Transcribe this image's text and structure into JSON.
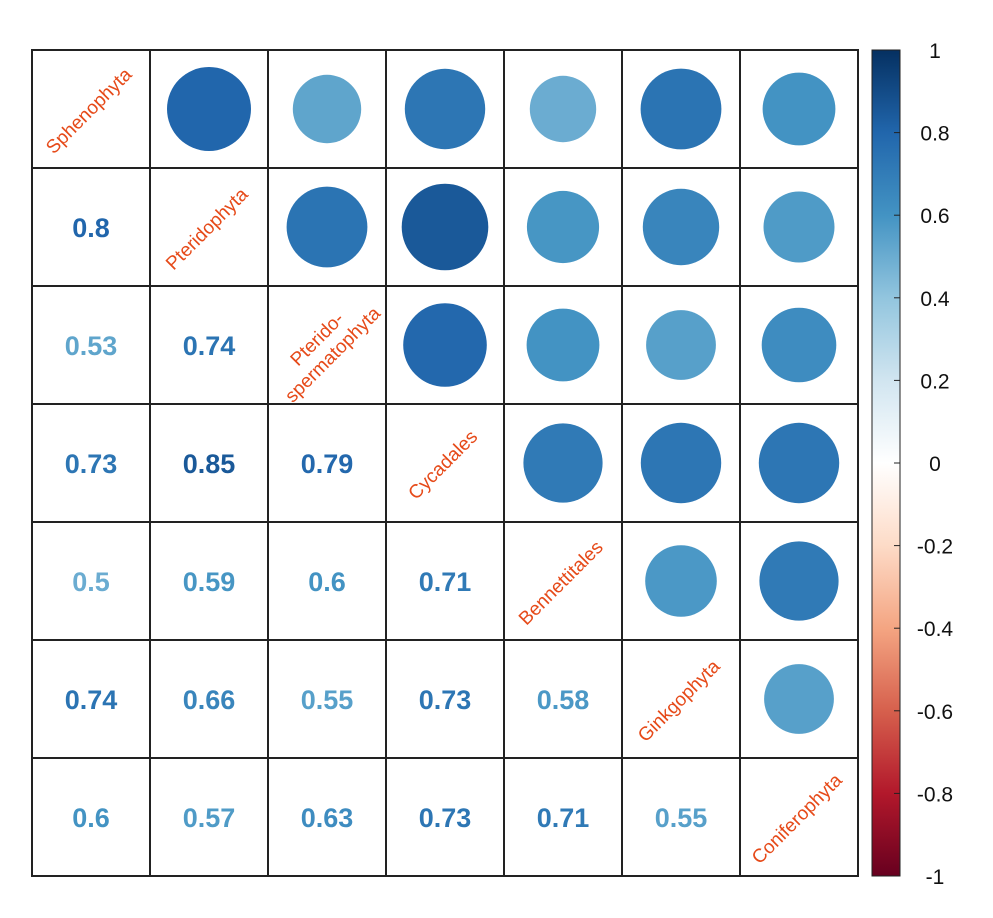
{
  "chart_data": {
    "type": "heatmap",
    "variables": [
      "Sphenophyta",
      "Pteridophyta",
      "Pterido-spermatophyta",
      "Cycadales",
      "Bennettitales",
      "Ginkgophyta",
      "Coniferophyta"
    ],
    "diagonal_labels": [
      [
        "Sphenophyta"
      ],
      [
        "Pteridophyta"
      ],
      [
        "Pterido-",
        "spermatophyta"
      ],
      [
        "Cycadales"
      ],
      [
        "Bennettitales"
      ],
      [
        "Ginkgophyta"
      ],
      [
        "Coniferophyta"
      ]
    ],
    "matrix": [
      [
        1.0,
        0.8,
        0.53,
        0.73,
        0.5,
        0.74,
        0.6
      ],
      [
        0.8,
        1.0,
        0.74,
        0.85,
        0.59,
        0.66,
        0.57
      ],
      [
        0.53,
        0.74,
        1.0,
        0.79,
        0.6,
        0.55,
        0.63
      ],
      [
        0.73,
        0.85,
        0.79,
        1.0,
        0.71,
        0.73,
        0.73
      ],
      [
        0.5,
        0.59,
        0.6,
        0.71,
        1.0,
        0.58,
        0.71
      ],
      [
        0.74,
        0.66,
        0.55,
        0.73,
        0.58,
        1.0,
        0.55
      ],
      [
        0.6,
        0.57,
        0.63,
        0.73,
        0.71,
        0.55,
        1.0
      ]
    ],
    "lower_triangle_text": [
      [],
      [
        "0.8"
      ],
      [
        "0.53",
        "0.74"
      ],
      [
        "0.73",
        "0.85",
        "0.79"
      ],
      [
        "0.5",
        "0.59",
        "0.6",
        "0.71"
      ],
      [
        "0.74",
        "0.66",
        "0.55",
        "0.73",
        "0.58"
      ],
      [
        "0.6",
        "0.57",
        "0.63",
        "0.73",
        "0.71",
        "0.55"
      ]
    ],
    "upper_triangle": "circles",
    "lower_triangle": "numbers",
    "colorbar": {
      "ticks": [
        "1",
        "0.8",
        "0.6",
        "0.4",
        "0.2",
        "0",
        "-0.2",
        "-0.4",
        "-0.6",
        "-0.8",
        "-1"
      ],
      "range": [
        -1,
        1
      ]
    },
    "colormap": [
      "#67001f",
      "#b2182b",
      "#d6604d",
      "#f4a582",
      "#fddbc7",
      "#ffffff",
      "#d1e5f0",
      "#92c5de",
      "#4393c3",
      "#2166ac",
      "#053061"
    ],
    "label_color": "#e64a19"
  }
}
